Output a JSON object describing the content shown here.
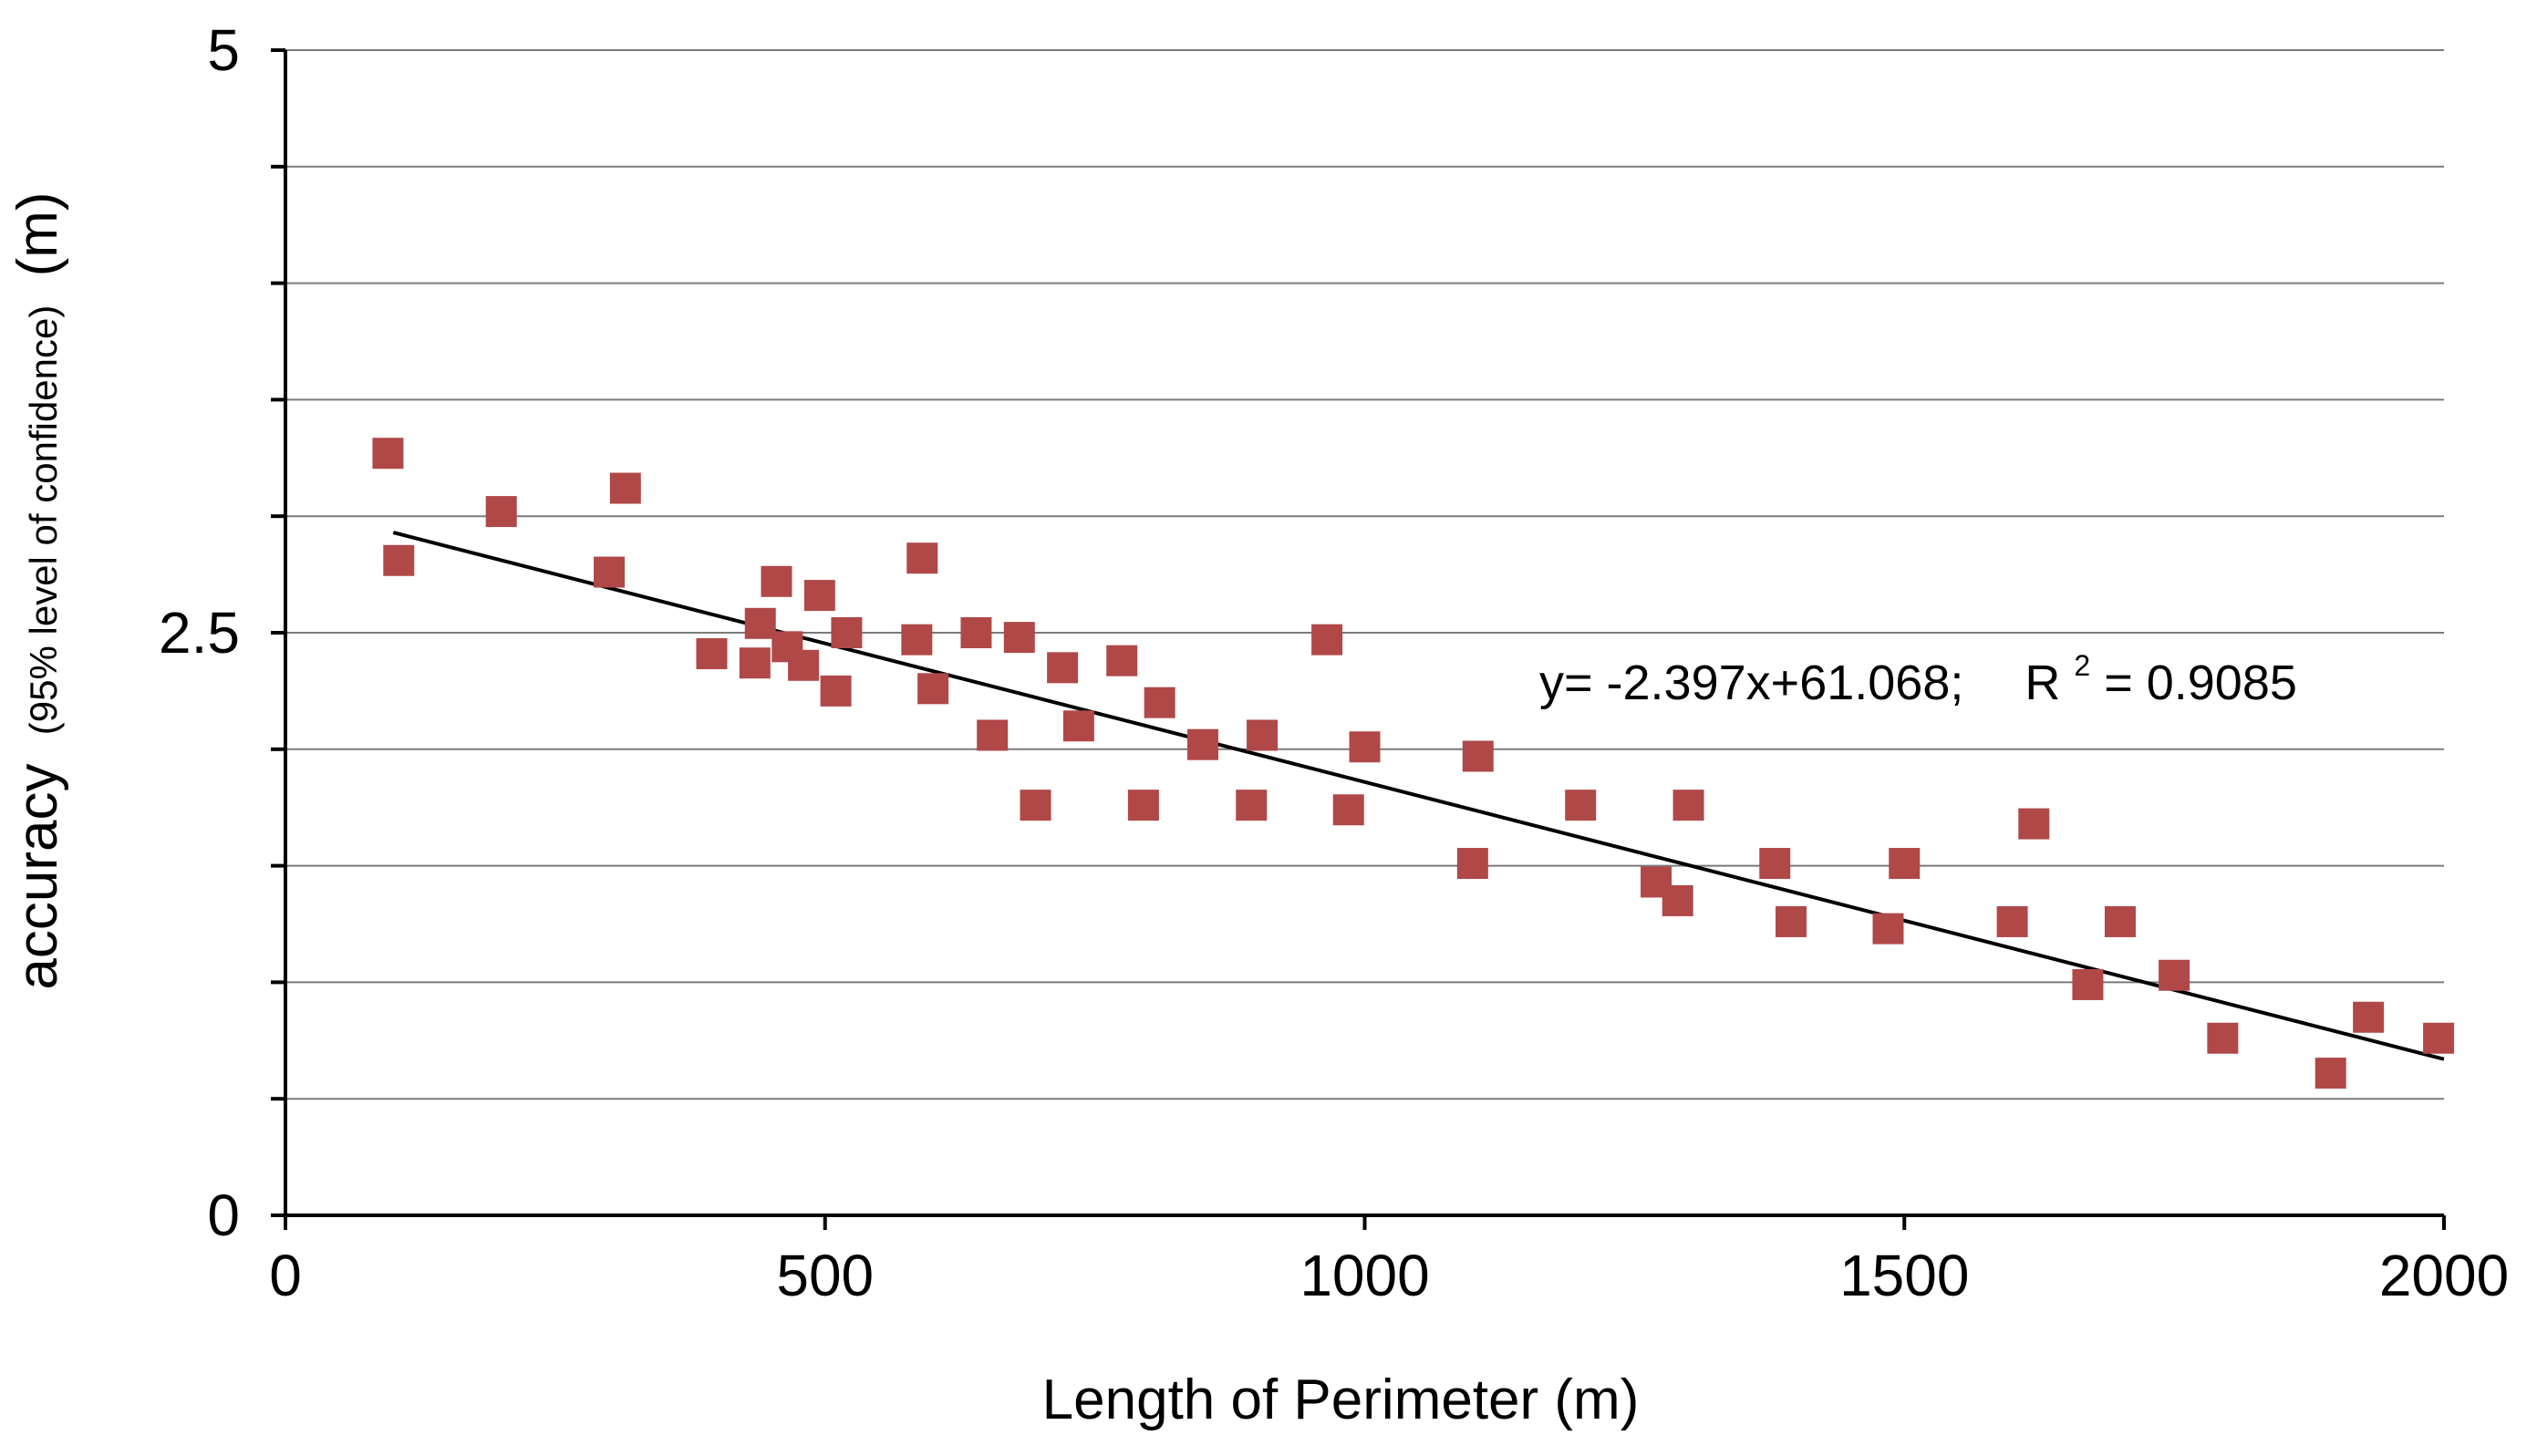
{
  "chart_data": {
    "type": "scatter",
    "title": "",
    "xlabel": "Length of Perimeter (m)",
    "ylabel_main": "accuracy",
    "ylabel_detail": "(95% level of confidence)",
    "ylabel_unit": "(m)",
    "xlim": [
      0,
      2000
    ],
    "ylim": [
      0,
      5
    ],
    "x_ticks": [
      0,
      500,
      1000,
      1500,
      2000
    ],
    "x_tick_labels": [
      "0",
      "500",
      "1000",
      "1500",
      "2000"
    ],
    "y_ticks": [
      0,
      2.5,
      5
    ],
    "y_tick_labels": [
      "0",
      "2.5",
      "5"
    ],
    "y_gridlines": [
      0.5,
      1.0,
      1.5,
      2.0,
      2.5,
      3.0,
      3.5,
      4.0,
      4.5,
      5.0
    ],
    "grid": true,
    "legend": "none",
    "series": [
      {
        "name": "accuracy",
        "marker": "square",
        "color": "#b04848",
        "points": [
          [
            95,
            3.27
          ],
          [
            105,
            2.81
          ],
          [
            200,
            3.02
          ],
          [
            300,
            2.76
          ],
          [
            315,
            3.12
          ],
          [
            395,
            2.41
          ],
          [
            435,
            2.37
          ],
          [
            440,
            2.54
          ],
          [
            455,
            2.72
          ],
          [
            465,
            2.44
          ],
          [
            480,
            2.36
          ],
          [
            495,
            2.66
          ],
          [
            510,
            2.25
          ],
          [
            520,
            2.5
          ],
          [
            585,
            2.47
          ],
          [
            590,
            2.82
          ],
          [
            600,
            2.26
          ],
          [
            640,
            2.5
          ],
          [
            655,
            2.06
          ],
          [
            680,
            2.48
          ],
          [
            695,
            1.76
          ],
          [
            720,
            2.35
          ],
          [
            735,
            2.1
          ],
          [
            775,
            2.38
          ],
          [
            795,
            1.76
          ],
          [
            810,
            2.2
          ],
          [
            850,
            2.02
          ],
          [
            895,
            1.76
          ],
          [
            905,
            2.06
          ],
          [
            965,
            2.47
          ],
          [
            985,
            1.74
          ],
          [
            1000,
            2.01
          ],
          [
            1100,
            1.51
          ],
          [
            1105,
            1.97
          ],
          [
            1200,
            1.76
          ],
          [
            1270,
            1.43
          ],
          [
            1290,
            1.35
          ],
          [
            1300,
            1.76
          ],
          [
            1380,
            1.51
          ],
          [
            1395,
            1.26
          ],
          [
            1485,
            1.23
          ],
          [
            1500,
            1.51
          ],
          [
            1600,
            1.26
          ],
          [
            1620,
            1.68
          ],
          [
            1670,
            0.99
          ],
          [
            1700,
            1.26
          ],
          [
            1750,
            1.03
          ],
          [
            1795,
            0.76
          ],
          [
            1895,
            0.61
          ],
          [
            1930,
            0.85
          ],
          [
            1995,
            0.76
          ]
        ]
      }
    ],
    "trendline": {
      "type": "linear",
      "x_range": [
        100,
        2000
      ],
      "y_start": 2.93,
      "y_end": 0.67,
      "color": "#000000"
    },
    "annotation": {
      "equation": "y= -2.397x+61.068;",
      "r_label": "R",
      "r_sup": "2",
      "r_value": "= 0.9085"
    }
  }
}
